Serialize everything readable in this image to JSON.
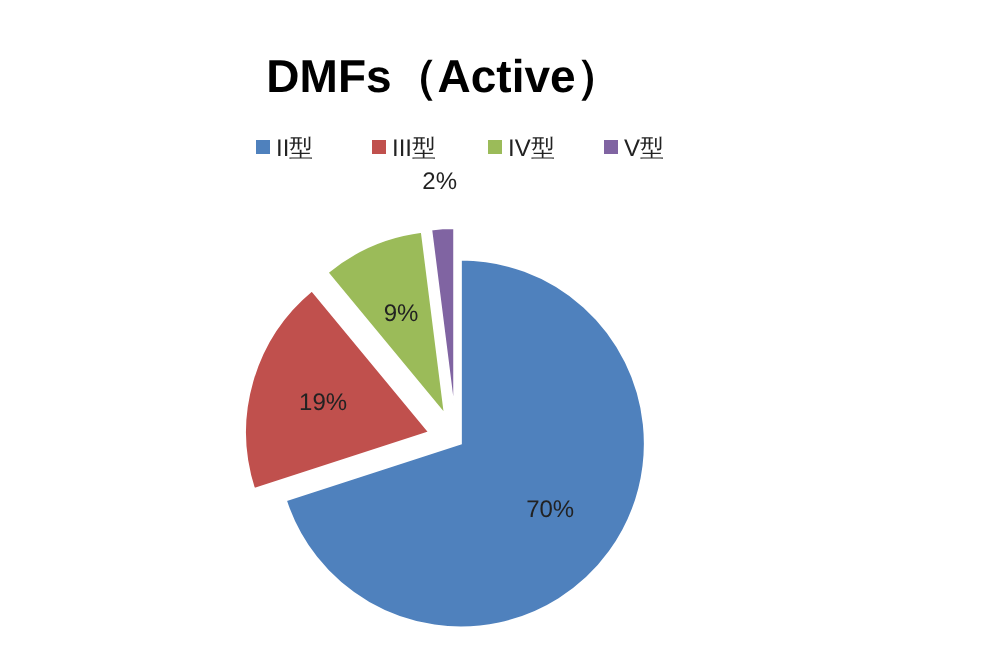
{
  "chart_data": {
    "type": "pie",
    "title": "DMFs（Active）",
    "categories": [
      "II型",
      "III型",
      "IV型",
      "V型"
    ],
    "values": [
      70,
      19,
      9,
      2
    ],
    "value_labels": [
      "70%",
      "19%",
      "9%",
      "2%"
    ],
    "colors": [
      "#4f81bd",
      "#c0504d",
      "#9bbb59",
      "#8064a2"
    ],
    "legend": "top"
  }
}
